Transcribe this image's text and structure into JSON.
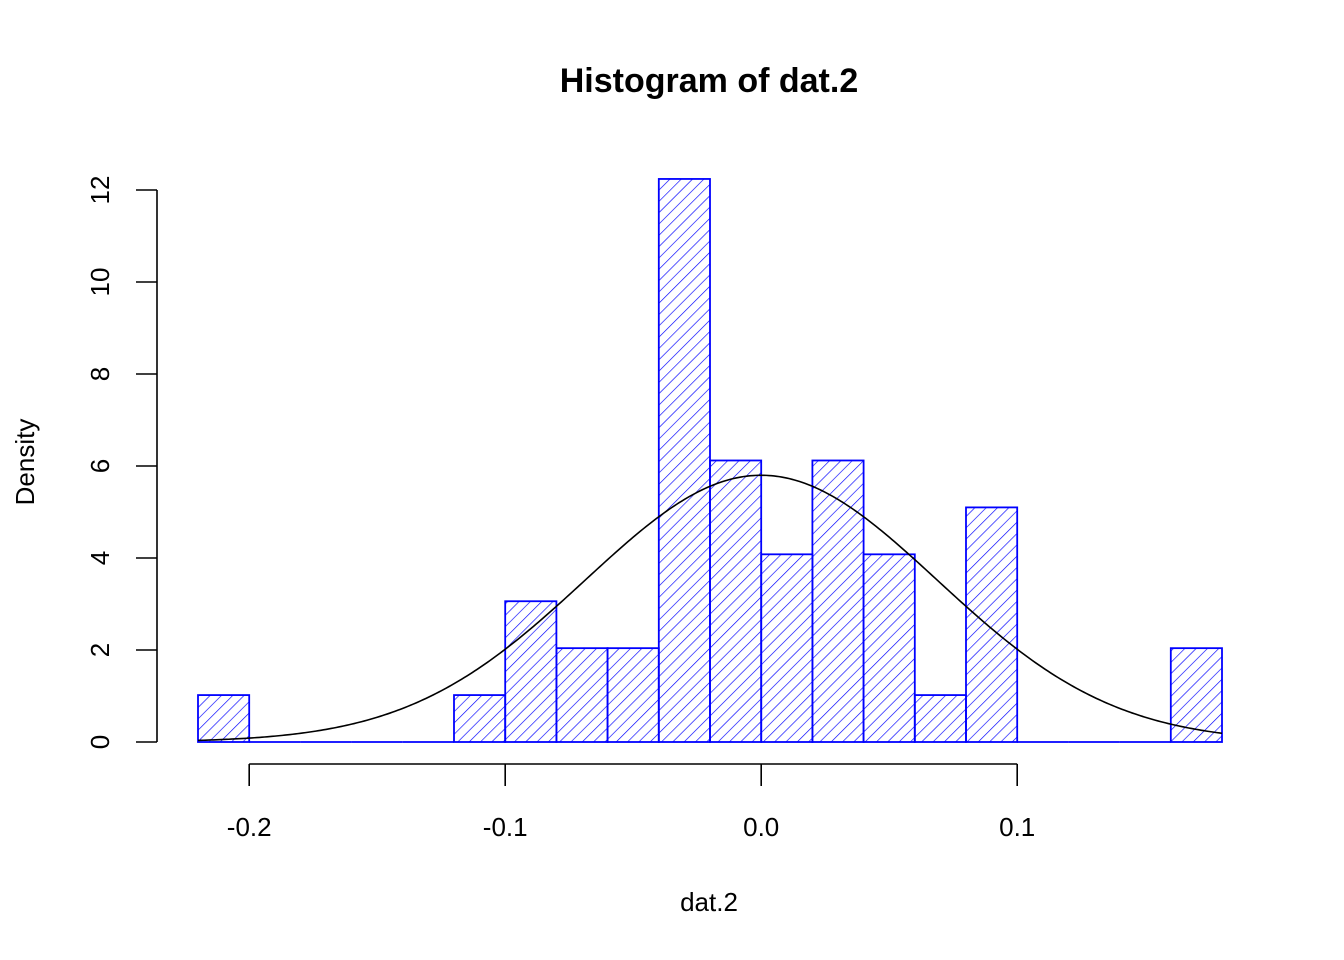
{
  "chart_data": {
    "type": "bar",
    "title": "Histogram of dat.2",
    "xlabel": "dat.2",
    "ylabel": "Density",
    "xlim": [
      -0.22,
      0.18
    ],
    "ylim": [
      0,
      12.25
    ],
    "x_ticks": [
      -0.2,
      -0.1,
      0.0,
      0.1
    ],
    "x_tick_labels": [
      "-0.2",
      "-0.1",
      "0.0",
      "0.1"
    ],
    "y_ticks": [
      0,
      2,
      4,
      6,
      8,
      10,
      12
    ],
    "y_tick_labels": [
      "0",
      "2",
      "4",
      "6",
      "8",
      "10",
      "12"
    ],
    "bin_width": 0.02,
    "bins": [
      {
        "start": -0.22,
        "end": -0.2,
        "density": 1.02
      },
      {
        "start": -0.2,
        "end": -0.18,
        "density": 0
      },
      {
        "start": -0.18,
        "end": -0.16,
        "density": 0
      },
      {
        "start": -0.16,
        "end": -0.14,
        "density": 0
      },
      {
        "start": -0.14,
        "end": -0.12,
        "density": 0
      },
      {
        "start": -0.12,
        "end": -0.1,
        "density": 1.02
      },
      {
        "start": -0.1,
        "end": -0.08,
        "density": 3.06
      },
      {
        "start": -0.08,
        "end": -0.06,
        "density": 2.04
      },
      {
        "start": -0.06,
        "end": -0.04,
        "density": 2.04
      },
      {
        "start": -0.04,
        "end": -0.02,
        "density": 12.24
      },
      {
        "start": -0.02,
        "end": 0.0,
        "density": 6.12
      },
      {
        "start": 0.0,
        "end": 0.02,
        "density": 4.08
      },
      {
        "start": 0.02,
        "end": 0.04,
        "density": 6.12
      },
      {
        "start": 0.04,
        "end": 0.06,
        "density": 4.08
      },
      {
        "start": 0.06,
        "end": 0.08,
        "density": 1.02
      },
      {
        "start": 0.08,
        "end": 0.1,
        "density": 5.1
      },
      {
        "start": 0.1,
        "end": 0.12,
        "density": 0
      },
      {
        "start": 0.12,
        "end": 0.14,
        "density": 0
      },
      {
        "start": 0.14,
        "end": 0.16,
        "density": 0
      },
      {
        "start": 0.16,
        "end": 0.18,
        "density": 2.04
      }
    ],
    "density_curve": {
      "type": "normal",
      "mean": 0.0,
      "sd": 0.0688
    },
    "bar_color": "#0000ff",
    "bar_fill": "hatched",
    "curve_color": "#000000",
    "grid": false
  }
}
